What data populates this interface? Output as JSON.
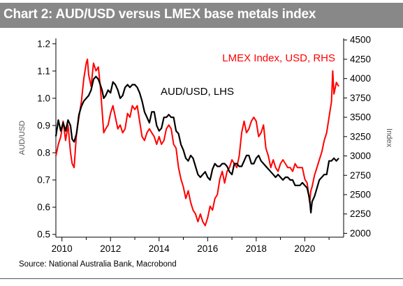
{
  "title": "Chart 2: AUD/USD versus LMEX base metals index",
  "source": "Source: National Australia Bank, Macrobond",
  "chart_data": {
    "type": "line",
    "y_left_label": "AUD/USD",
    "y_right_label": "Index",
    "x_ticks": [
      "2010",
      "2012",
      "2014",
      "2016",
      "2018",
      "2020"
    ],
    "y_left_ticks": [
      "0.5",
      "0.6",
      "0.7",
      "0.8",
      "0.9",
      "1.0",
      "1.1",
      "1.2"
    ],
    "y_right_ticks": [
      "2000",
      "2250",
      "2500",
      "2750",
      "3000",
      "3250",
      "3500",
      "3750",
      "4000",
      "4250",
      "4500"
    ],
    "ylim_left": [
      0.49,
      1.22
    ],
    "ylim_right": [
      1950,
      4520
    ],
    "xlim": [
      2009.75,
      2021.6
    ],
    "colors": {
      "aud": "#000000",
      "lmex": "#ff0000",
      "title_bg": "#888888"
    },
    "series": [
      {
        "name": "AUD/USD, LHS",
        "axis": "left",
        "x": [
          2009.75,
          2009.85,
          2009.95,
          2010.05,
          2010.15,
          2010.25,
          2010.35,
          2010.42,
          2010.5,
          2010.6,
          2010.7,
          2010.8,
          2010.9,
          2011.0,
          2011.1,
          2011.2,
          2011.3,
          2011.4,
          2011.5,
          2011.58,
          2011.65,
          2011.72,
          2011.8,
          2011.9,
          2012.0,
          2012.1,
          2012.2,
          2012.3,
          2012.4,
          2012.5,
          2012.6,
          2012.7,
          2012.8,
          2012.9,
          2013.0,
          2013.1,
          2013.2,
          2013.3,
          2013.4,
          2013.5,
          2013.6,
          2013.7,
          2013.8,
          2013.9,
          2014.0,
          2014.1,
          2014.2,
          2014.3,
          2014.4,
          2014.5,
          2014.6,
          2014.7,
          2014.8,
          2014.9,
          2015.0,
          2015.1,
          2015.2,
          2015.3,
          2015.4,
          2015.5,
          2015.6,
          2015.7,
          2015.8,
          2015.9,
          2016.0,
          2016.1,
          2016.2,
          2016.3,
          2016.4,
          2016.5,
          2016.6,
          2016.7,
          2016.8,
          2016.9,
          2017.0,
          2017.1,
          2017.2,
          2017.3,
          2017.4,
          2017.5,
          2017.6,
          2017.7,
          2017.8,
          2017.9,
          2018.0,
          2018.1,
          2018.2,
          2018.3,
          2018.4,
          2018.5,
          2018.6,
          2018.7,
          2018.8,
          2018.9,
          2019.0,
          2019.1,
          2019.2,
          2019.3,
          2019.4,
          2019.5,
          2019.6,
          2019.7,
          2019.8,
          2019.9,
          2020.0,
          2020.1,
          2020.2,
          2020.25,
          2020.3,
          2020.4,
          2020.5,
          2020.6,
          2020.7,
          2020.8,
          2020.9,
          2021.0,
          2021.1,
          2021.2,
          2021.3,
          2021.4
        ],
        "values": [
          0.86,
          0.92,
          0.88,
          0.91,
          0.88,
          0.92,
          0.9,
          0.85,
          0.84,
          0.87,
          0.94,
          0.97,
          0.99,
          1.0,
          1.01,
          1.03,
          1.07,
          1.08,
          1.07,
          1.05,
          1.03,
          1.0,
          1.01,
          1.03,
          1.02,
          1.06,
          1.05,
          1.03,
          1.0,
          1.01,
          1.04,
          1.05,
          1.04,
          1.05,
          1.05,
          1.04,
          1.02,
          0.99,
          0.95,
          0.93,
          0.91,
          0.95,
          0.95,
          0.9,
          0.88,
          0.89,
          0.93,
          0.93,
          0.94,
          0.93,
          0.93,
          0.88,
          0.87,
          0.83,
          0.81,
          0.78,
          0.77,
          0.79,
          0.78,
          0.75,
          0.72,
          0.71,
          0.72,
          0.73,
          0.71,
          0.7,
          0.74,
          0.76,
          0.75,
          0.75,
          0.76,
          0.76,
          0.75,
          0.73,
          0.72,
          0.76,
          0.76,
          0.75,
          0.75,
          0.77,
          0.79,
          0.79,
          0.76,
          0.76,
          0.78,
          0.79,
          0.77,
          0.76,
          0.75,
          0.74,
          0.73,
          0.72,
          0.71,
          0.72,
          0.71,
          0.7,
          0.71,
          0.71,
          0.7,
          0.7,
          0.68,
          0.68,
          0.68,
          0.69,
          0.68,
          0.67,
          0.63,
          0.58,
          0.62,
          0.64,
          0.67,
          0.7,
          0.71,
          0.72,
          0.72,
          0.77,
          0.77,
          0.78,
          0.77,
          0.78
        ]
      },
      {
        "name": "LMEX Index, USD, RHS",
        "axis": "right",
        "x": [
          2009.75,
          2009.85,
          2009.95,
          2010.05,
          2010.15,
          2010.25,
          2010.35,
          2010.42,
          2010.5,
          2010.6,
          2010.7,
          2010.8,
          2010.9,
          2011.0,
          2011.05,
          2011.1,
          2011.2,
          2011.3,
          2011.4,
          2011.5,
          2011.58,
          2011.65,
          2011.72,
          2011.8,
          2011.9,
          2012.0,
          2012.1,
          2012.2,
          2012.3,
          2012.4,
          2012.5,
          2012.6,
          2012.7,
          2012.8,
          2012.9,
          2013.0,
          2013.1,
          2013.2,
          2013.3,
          2013.4,
          2013.5,
          2013.6,
          2013.7,
          2013.8,
          2013.9,
          2014.0,
          2014.1,
          2014.2,
          2014.3,
          2014.4,
          2014.5,
          2014.6,
          2014.7,
          2014.8,
          2014.9,
          2015.0,
          2015.1,
          2015.2,
          2015.3,
          2015.4,
          2015.5,
          2015.6,
          2015.7,
          2015.8,
          2015.9,
          2016.0,
          2016.1,
          2016.2,
          2016.3,
          2016.4,
          2016.5,
          2016.6,
          2016.7,
          2016.8,
          2016.9,
          2017.0,
          2017.1,
          2017.2,
          2017.3,
          2017.4,
          2017.5,
          2017.6,
          2017.7,
          2017.8,
          2017.9,
          2018.0,
          2018.1,
          2018.2,
          2018.3,
          2018.4,
          2018.5,
          2018.6,
          2018.7,
          2018.8,
          2018.9,
          2019.0,
          2019.1,
          2019.2,
          2019.3,
          2019.4,
          2019.5,
          2019.6,
          2019.7,
          2019.8,
          2019.9,
          2020.0,
          2020.1,
          2020.2,
          2020.25,
          2020.3,
          2020.4,
          2020.5,
          2020.6,
          2020.7,
          2020.8,
          2020.9,
          2021.0,
          2021.1,
          2021.15,
          2021.2,
          2021.3,
          2021.4
        ],
        "values": [
          3000,
          3150,
          3250,
          3450,
          3200,
          3400,
          3050,
          2900,
          2850,
          3300,
          3500,
          3700,
          4000,
          4200,
          4250,
          4050,
          3900,
          4200,
          4100,
          4150,
          3900,
          3600,
          3300,
          3350,
          3400,
          3550,
          3650,
          3500,
          3350,
          3400,
          3300,
          3350,
          3550,
          3500,
          3650,
          3600,
          3650,
          3450,
          3250,
          3200,
          3300,
          3350,
          3300,
          3250,
          3150,
          3250,
          3150,
          3200,
          3350,
          3400,
          3350,
          3150,
          3100,
          2850,
          2700,
          2600,
          2450,
          2550,
          2400,
          2300,
          2250,
          2150,
          2250,
          2150,
          2100,
          2200,
          2350,
          2300,
          2450,
          2500,
          2700,
          2800,
          2650,
          2800,
          2850,
          2950,
          2900,
          2850,
          3000,
          3300,
          3450,
          3300,
          3350,
          3450,
          3500,
          3450,
          3250,
          3300,
          3400,
          3100,
          3000,
          2850,
          2950,
          2850,
          2800,
          2900,
          2950,
          2900,
          2850,
          2850,
          2800,
          2900,
          2850,
          2850,
          2850,
          2700,
          2650,
          2400,
          2550,
          2600,
          2750,
          2850,
          2950,
          3050,
          3200,
          3300,
          3500,
          3700,
          4100,
          3800,
          3950,
          3900
        ]
      }
    ]
  }
}
